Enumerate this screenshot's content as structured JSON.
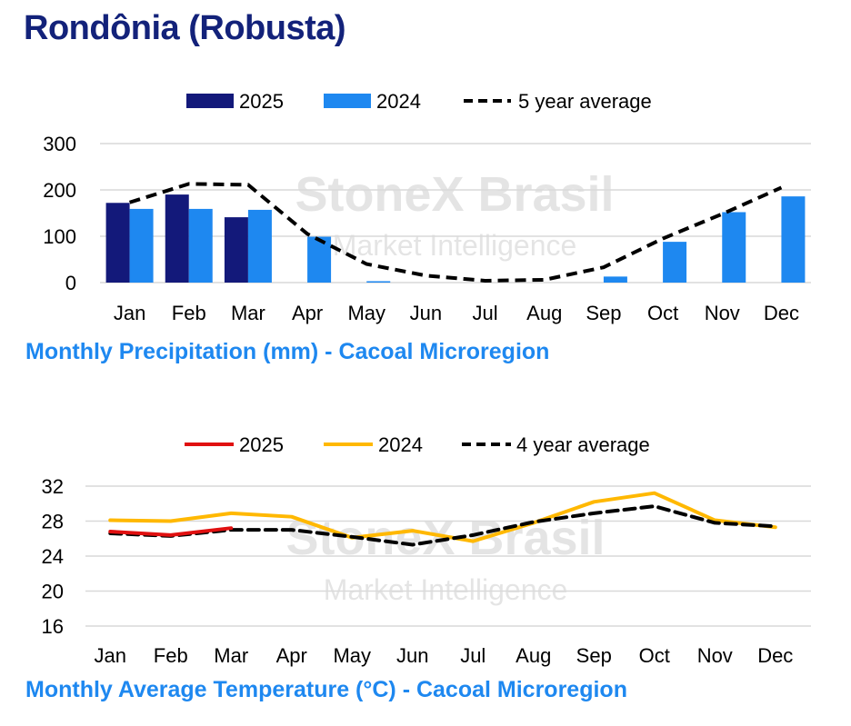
{
  "page": {
    "title": "Rondônia (Robusta)"
  },
  "watermark": {
    "line1": "StoneX Brasil",
    "line2": "Market Intelligence"
  },
  "chart_data": [
    {
      "type": "bar",
      "title": "Monthly Precipitation (mm) - Cacoal Microregion",
      "categories": [
        "Jan",
        "Feb",
        "Mar",
        "Apr",
        "May",
        "Jun",
        "Jul",
        "Aug",
        "Sep",
        "Oct",
        "Nov",
        "Dec"
      ],
      "ylim": [
        0,
        300
      ],
      "yticks": [
        0,
        100,
        200,
        300
      ],
      "grid": true,
      "legend_position": "top",
      "series": [
        {
          "name": "2025",
          "kind": "bar",
          "color": "#13197a",
          "values": [
            172,
            190,
            141,
            null,
            null,
            null,
            null,
            null,
            null,
            null,
            null,
            null
          ]
        },
        {
          "name": "2024",
          "kind": "bar",
          "color": "#1e88f0",
          "values": [
            159,
            159,
            157,
            99,
            3,
            0,
            0,
            0,
            13,
            88,
            152,
            186
          ]
        },
        {
          "name": "5 year average",
          "kind": "line",
          "style": "dashed",
          "color": "#000000",
          "values": [
            173,
            213,
            211,
            105,
            40,
            15,
            4,
            6,
            33,
            95,
            148,
            205
          ]
        }
      ]
    },
    {
      "type": "line",
      "title": "Monthly Average Temperature (°C) - Cacoal Microregion",
      "categories": [
        "Jan",
        "Feb",
        "Mar",
        "Apr",
        "May",
        "Jun",
        "Jul",
        "Aug",
        "Sep",
        "Oct",
        "Nov",
        "Dec"
      ],
      "ylim": [
        16,
        32
      ],
      "yticks": [
        16,
        20,
        24,
        28,
        32
      ],
      "grid": true,
      "legend_position": "top",
      "series": [
        {
          "name": "2025",
          "style": "solid",
          "color": "#e01010",
          "values": [
            26.8,
            26.4,
            27.2,
            null,
            null,
            null,
            null,
            null,
            null,
            null,
            null,
            null
          ]
        },
        {
          "name": "2024",
          "style": "solid",
          "color": "#ffb800",
          "values": [
            28.1,
            28.0,
            28.9,
            28.5,
            26.1,
            26.9,
            25.7,
            27.8,
            30.2,
            31.2,
            28.1,
            27.3
          ]
        },
        {
          "name": "4 year average",
          "style": "dashed",
          "color": "#000000",
          "values": [
            26.6,
            26.3,
            27.0,
            27.0,
            26.2,
            25.3,
            26.4,
            27.9,
            28.9,
            29.7,
            27.8,
            27.4
          ]
        }
      ]
    }
  ]
}
